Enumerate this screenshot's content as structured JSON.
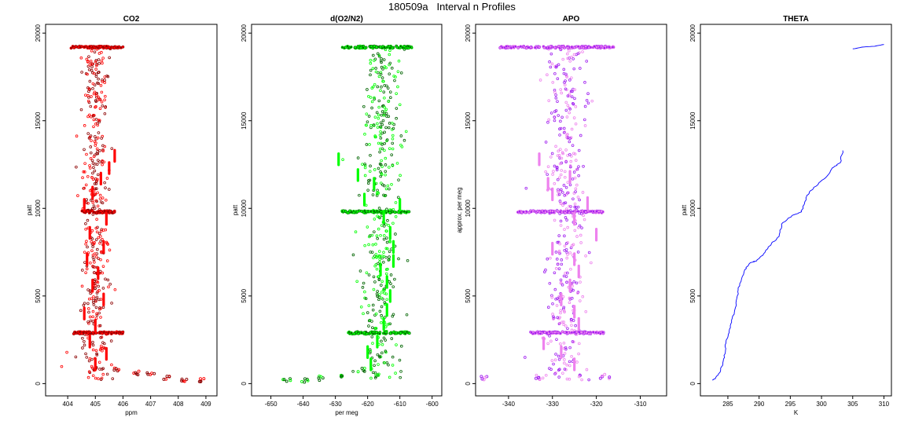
{
  "figure_title": "180509a   Interval n Profiles",
  "colors": {
    "co2": "#ff0000",
    "co2_dark": "#8b0000",
    "o2n2": "#00ff00",
    "o2n2_dark": "#006400",
    "apo": "#ee82ee",
    "apo_dark": "#a020f0",
    "theta": "#0000ff"
  },
  "chart_data": [
    {
      "type": "scatter",
      "title": "CO2",
      "xlabel": "ppm",
      "ylabel": "patt",
      "xlim": [
        403.2,
        409.4
      ],
      "ylim": [
        -700,
        20500
      ],
      "xticks": [
        404,
        405,
        406,
        407,
        408,
        409
      ],
      "yticks": [
        0,
        5000,
        10000,
        15000,
        20000
      ],
      "reference_value": 405.0,
      "spread": 0.45,
      "outlier_spread": 0.8,
      "bands": [
        {
          "y": 19200,
          "x_from": 404.1,
          "x_to": 406.0
        },
        {
          "y": 9800,
          "x_from": 404.5,
          "x_to": 405.7
        },
        {
          "y": 2900,
          "x_from": 404.2,
          "x_to": 406.0
        }
      ],
      "tail": [
        {
          "x": 405.8,
          "y": 800
        },
        {
          "x": 406.5,
          "y": 600
        },
        {
          "x": 407.0,
          "y": 500
        },
        {
          "x": 407.6,
          "y": 300
        },
        {
          "x": 408.2,
          "y": 200
        },
        {
          "x": 408.8,
          "y": 200
        }
      ],
      "dash_segments": [
        {
          "x": 405.7,
          "y": 13000
        },
        {
          "x": 405.5,
          "y": 12300
        },
        {
          "x": 405.2,
          "y": 11700
        },
        {
          "x": 404.9,
          "y": 10900
        },
        {
          "x": 404.6,
          "y": 10200
        },
        {
          "x": 405.4,
          "y": 9400
        },
        {
          "x": 404.8,
          "y": 8600
        },
        {
          "x": 405.3,
          "y": 7800
        },
        {
          "x": 404.7,
          "y": 7100
        },
        {
          "x": 405.1,
          "y": 6300
        },
        {
          "x": 404.9,
          "y": 5600
        },
        {
          "x": 405.3,
          "y": 4800
        },
        {
          "x": 404.6,
          "y": 4000
        },
        {
          "x": 405.0,
          "y": 3300
        },
        {
          "x": 404.8,
          "y": 2400
        },
        {
          "x": 405.4,
          "y": 1700
        },
        {
          "x": 405.0,
          "y": 1100
        }
      ],
      "scatter_colors": [
        "#8b0000",
        "#ff0000"
      ]
    },
    {
      "type": "scatter",
      "title": "d(O2/N2)",
      "xlabel": "per meg",
      "ylabel": "patt",
      "xlim": [
        -656,
        -597
      ],
      "ylim": [
        -700,
        20500
      ],
      "xticks": [
        -650,
        -640,
        -630,
        -620,
        -610,
        -600
      ],
      "yticks": [
        0,
        5000,
        10000,
        15000,
        20000
      ],
      "reference_value": -616,
      "spread": 5,
      "outlier_spread": 10,
      "bands": [
        {
          "y": 19200,
          "x_from": -628,
          "x_to": -606
        },
        {
          "y": 9800,
          "x_from": -628,
          "x_to": -607
        },
        {
          "y": 2900,
          "x_from": -626,
          "x_to": -607
        }
      ],
      "tail": [
        {
          "x": -622,
          "y": 800
        },
        {
          "x": -628,
          "y": 500
        },
        {
          "x": -634,
          "y": 300
        },
        {
          "x": -640,
          "y": 200
        },
        {
          "x": -645,
          "y": 200
        }
      ],
      "dash_segments": [
        {
          "x": -629,
          "y": 12800
        },
        {
          "x": -623,
          "y": 11900
        },
        {
          "x": -618,
          "y": 11400
        },
        {
          "x": -621,
          "y": 10500
        },
        {
          "x": -610,
          "y": 10200
        },
        {
          "x": -615,
          "y": 9500
        },
        {
          "x": -613,
          "y": 8600
        },
        {
          "x": -612,
          "y": 7800
        },
        {
          "x": -612,
          "y": 7000
        },
        {
          "x": -616,
          "y": 6500
        },
        {
          "x": -614,
          "y": 5800
        },
        {
          "x": -613,
          "y": 5000
        },
        {
          "x": -614,
          "y": 4200
        },
        {
          "x": -615,
          "y": 3400
        },
        {
          "x": -617,
          "y": 2400
        },
        {
          "x": -620,
          "y": 1800
        },
        {
          "x": -619,
          "y": 1100
        }
      ],
      "scatter_colors": [
        "#006400",
        "#00ff00"
      ]
    },
    {
      "type": "scatter",
      "title": "APO",
      "xlabel": "",
      "ylabel": "approx. per meg",
      "xlim": [
        -347.5,
        -304
      ],
      "ylim": [
        -700,
        20500
      ],
      "xticks": [
        -340,
        -330,
        -320,
        -310
      ],
      "yticks": [
        0,
        5000,
        10000,
        15000,
        20000
      ],
      "reference_value": -327,
      "spread": 4,
      "outlier_spread": 7,
      "bands": [
        {
          "y": 19200,
          "x_from": -342,
          "x_to": -316
        },
        {
          "y": 9800,
          "x_from": -338,
          "x_to": -318
        },
        {
          "y": 2900,
          "x_from": -335,
          "x_to": -318
        }
      ],
      "tail": [
        {
          "x": -345,
          "y": 300
        },
        {
          "x": -334,
          "y": 300
        },
        {
          "x": -318,
          "y": 400
        }
      ],
      "dash_segments": [
        {
          "x": -333,
          "y": 12800
        },
        {
          "x": -326,
          "y": 11800
        },
        {
          "x": -331,
          "y": 11400
        },
        {
          "x": -330,
          "y": 10800
        },
        {
          "x": -322,
          "y": 10300
        },
        {
          "x": -325,
          "y": 9400
        },
        {
          "x": -320,
          "y": 8500
        },
        {
          "x": -330,
          "y": 7700
        },
        {
          "x": -325,
          "y": 7100
        },
        {
          "x": -324,
          "y": 6400
        },
        {
          "x": -326,
          "y": 5600
        },
        {
          "x": -328,
          "y": 4800
        },
        {
          "x": -325,
          "y": 4100
        },
        {
          "x": -324,
          "y": 3400
        },
        {
          "x": -332,
          "y": 2300
        },
        {
          "x": -328,
          "y": 1800
        },
        {
          "x": -325,
          "y": 1100
        }
      ],
      "scatter_colors": [
        "#a020f0",
        "#ee82ee"
      ]
    },
    {
      "type": "line",
      "title": "THETA",
      "xlabel": "K",
      "ylabel": "patt",
      "xlim": [
        280.6,
        311.2
      ],
      "ylim": [
        -700,
        20500
      ],
      "xticks": [
        285,
        290,
        295,
        300,
        305,
        310
      ],
      "yticks": [
        0,
        5000,
        10000,
        15000,
        20000
      ],
      "series": [
        {
          "name": "profile",
          "points": [
            [
              282.5,
              200
            ],
            [
              283.0,
              300
            ],
            [
              283.8,
              700
            ],
            [
              284.2,
              1200
            ],
            [
              284.6,
              1800
            ],
            [
              284.7,
              2400
            ],
            [
              285.2,
              2900
            ],
            [
              285.6,
              3500
            ],
            [
              286.1,
              4200
            ],
            [
              286.5,
              5000
            ],
            [
              286.9,
              5700
            ],
            [
              287.7,
              6500
            ],
            [
              288.6,
              6900
            ],
            [
              289.6,
              7000
            ],
            [
              290.7,
              7400
            ],
            [
              292.0,
              8000
            ],
            [
              293.2,
              8400
            ],
            [
              293.6,
              9100
            ],
            [
              295.3,
              9600
            ],
            [
              296.8,
              9800
            ],
            [
              297.2,
              10200
            ],
            [
              297.5,
              10600
            ],
            [
              298.2,
              11000
            ],
            [
              299.5,
              11400
            ],
            [
              300.8,
              11800
            ],
            [
              301.7,
              12300
            ],
            [
              303.0,
              12600
            ],
            [
              303.4,
              13300
            ]
          ]
        },
        {
          "name": "top",
          "points": [
            [
              305.0,
              19100
            ],
            [
              306.5,
              19200
            ],
            [
              308.5,
              19250
            ],
            [
              310.0,
              19350
            ]
          ]
        }
      ]
    }
  ]
}
